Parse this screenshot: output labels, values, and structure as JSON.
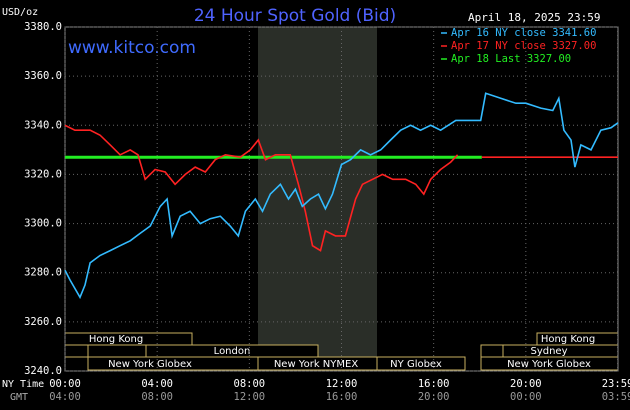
{
  "chart_data": {
    "type": "line",
    "title": "24 Hour Spot Gold (Bid)",
    "site": "www.kitco.com",
    "timestamp": "April 18, 2025 23:59",
    "y_label": "USD/oz",
    "x_label": "NY Time",
    "x2_label": "GMT",
    "xlim": [
      0,
      24
    ],
    "xticks": [
      {
        "value": 0,
        "label": "00:00"
      },
      {
        "value": 4,
        "label": "04:00"
      },
      {
        "value": 8,
        "label": "08:00"
      },
      {
        "value": 12,
        "label": "12:00"
      },
      {
        "value": 16,
        "label": "16:00"
      },
      {
        "value": 20,
        "label": "20:00"
      },
      {
        "value": 23.98,
        "label": "23:59"
      }
    ],
    "gmt_labels": [
      "04:00",
      "08:00",
      "12:00",
      "16:00",
      "20:00",
      "00:00",
      "03:59"
    ],
    "ylim": [
      3240,
      3380
    ],
    "yticks": [
      {
        "value": 3240,
        "label": "3240.0"
      },
      {
        "value": 3260,
        "label": "3260.0"
      },
      {
        "value": 3280,
        "label": "3280.0"
      },
      {
        "value": 3300,
        "label": "3300.0"
      },
      {
        "value": 3320,
        "label": "3320.0"
      },
      {
        "value": 3340,
        "label": "3340.0"
      },
      {
        "value": 3360,
        "label": "3360.0"
      },
      {
        "value": 3380,
        "label": "3380.0"
      }
    ],
    "grid": true,
    "series": [
      {
        "name": "Apr 16 NY close 3341.60",
        "color": "#33bbff",
        "x": [
          0,
          0.22,
          0.65,
          0.87,
          1.09,
          1.52,
          1.96,
          2.39,
          2.83,
          3.26,
          3.7,
          4.13,
          4.43,
          4.65,
          5,
          5.43,
          5.87,
          6.3,
          6.74,
          7.17,
          7.52,
          7.83,
          8.26,
          8.57,
          8.91,
          9.35,
          9.7,
          10,
          10.3,
          10.65,
          11,
          11.3,
          11.61,
          12,
          12.39,
          12.83,
          13.26,
          13.7,
          14.13,
          14.57,
          15,
          15.43,
          15.87,
          16.3,
          16.96,
          18.04,
          18.26,
          18.91,
          19.57,
          20,
          20.65,
          21.17,
          21.43,
          21.65,
          21.96,
          22.13,
          22.39,
          22.83,
          23.26,
          23.7,
          24
        ],
        "values": [
          3281,
          3277,
          3270,
          3275,
          3284,
          3287,
          3289,
          3291,
          3293,
          3296,
          3299,
          3307,
          3310,
          3295,
          3303,
          3305,
          3300,
          3302,
          3303,
          3299,
          3295,
          3305,
          3310,
          3305,
          3312,
          3316,
          3310,
          3314,
          3307,
          3310,
          3312,
          3306,
          3312,
          3324,
          3326,
          3330,
          3328,
          3330,
          3334,
          3338,
          3340,
          3338,
          3340,
          3338,
          3342,
          3342,
          3353,
          3351,
          3349,
          3349,
          3347,
          3346,
          3351,
          3338,
          3334,
          3323,
          3332,
          3330,
          3338,
          3339,
          3341
        ]
      },
      {
        "name": "Apr 17 NY close 3327.00",
        "color": "#ff2222",
        "x": [
          0,
          0.43,
          1.09,
          1.52,
          1.96,
          2.39,
          2.83,
          3.17,
          3.48,
          3.91,
          4.35,
          4.78,
          5.22,
          5.65,
          6.09,
          6.52,
          6.96,
          7.61,
          8.04,
          8.39,
          8.7,
          9.13,
          9.78,
          10.13,
          10.43,
          10.74,
          11.09,
          11.3,
          11.74,
          12.17,
          12.61,
          12.91,
          13.35,
          13.78,
          14.22,
          14.78,
          15.22,
          15.57,
          15.87,
          16.3,
          16.74,
          17.04,
          17.5,
          18.09,
          24
        ],
        "values": [
          3340,
          3338,
          3338,
          3336,
          3332,
          3328,
          3330,
          3328,
          3318,
          3322,
          3321,
          3316,
          3320,
          3323,
          3321,
          3326,
          3328,
          3327,
          3330,
          3334,
          3326,
          3328,
          3328,
          3316,
          3305,
          3291,
          3289,
          3297,
          3295,
          3295,
          3310,
          3316,
          3318,
          3320,
          3318,
          3318,
          3316,
          3312,
          3318,
          3322,
          3325,
          3328,
          null,
          3327,
          3327
        ]
      },
      {
        "name": "Apr 18 Last 3327.00",
        "color": "#22ee22",
        "x": [
          0,
          18.09
        ],
        "values": [
          3327,
          3327
        ]
      }
    ],
    "sessions": [
      "Hong Kong",
      "London",
      "New York Globex",
      "New York NYMEX",
      "NY Globex",
      "Hong Kong",
      "Sydney",
      "New York Globex"
    ]
  }
}
